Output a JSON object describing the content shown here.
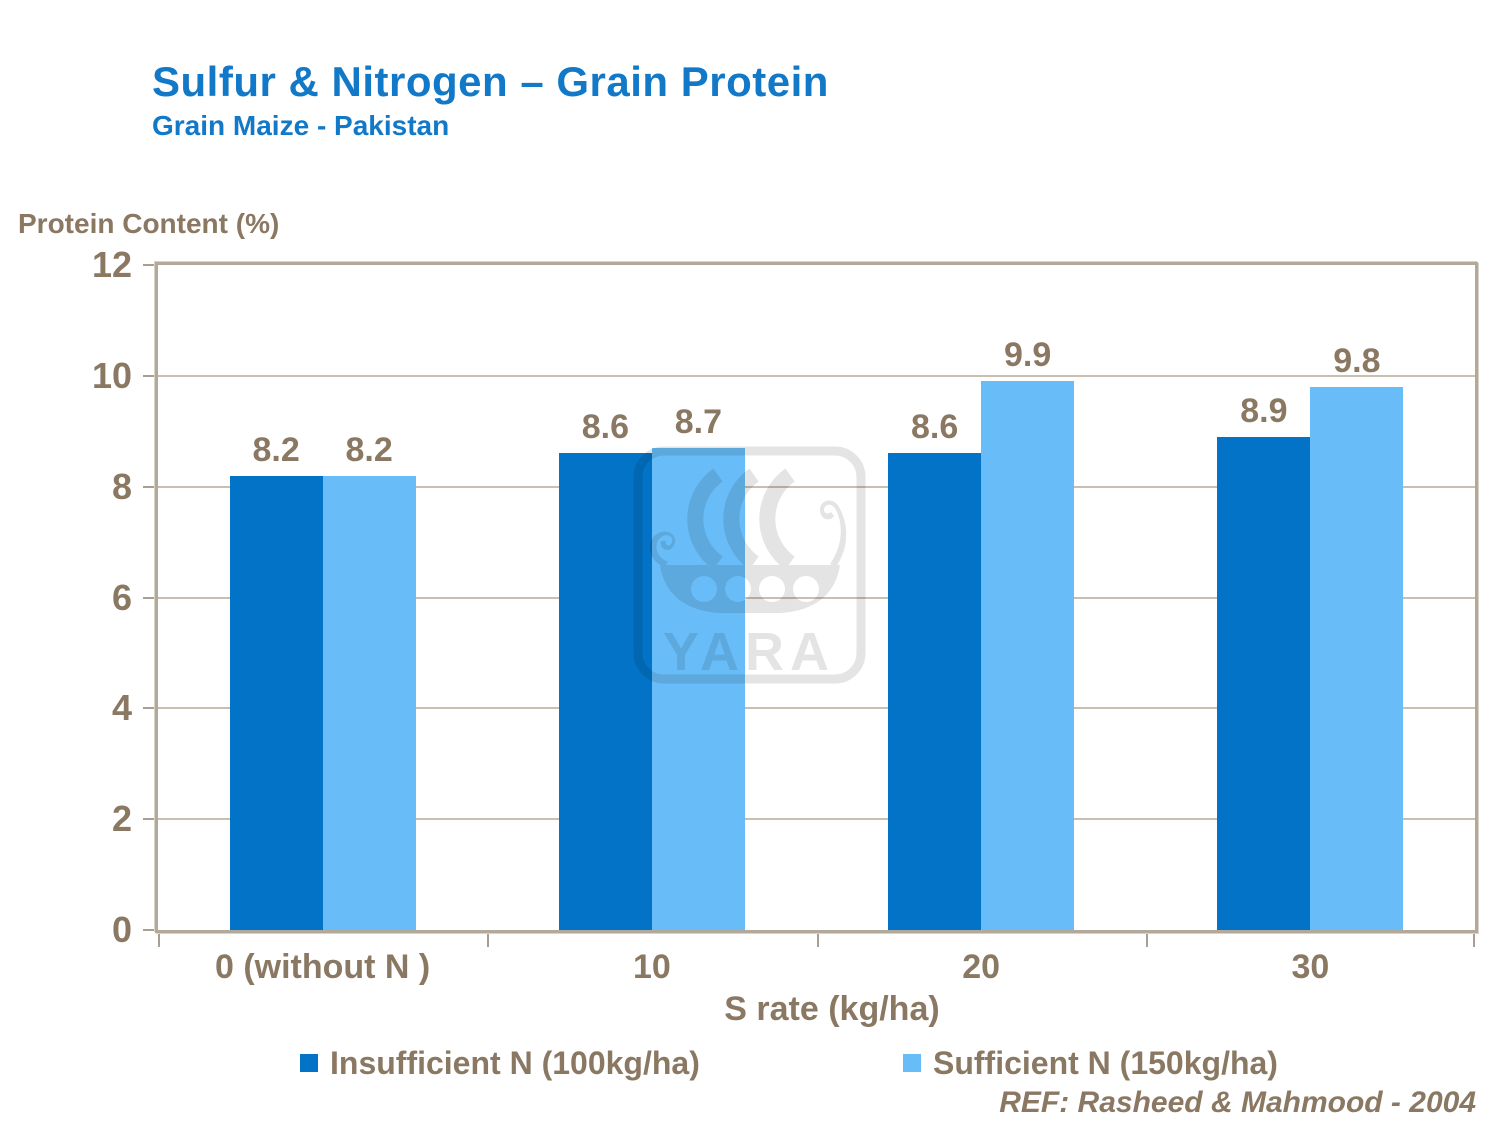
{
  "slide": {
    "title": "Sulfur & Nitrogen – Grain Protein",
    "subtitle": "Grain Maize - Pakistan",
    "reference": "REF: Rasheed & Mahmood - 2004",
    "watermark_text": "YARA"
  },
  "chart_data": {
    "type": "bar",
    "categories": [
      "0 (without N )",
      "10",
      "20",
      "30"
    ],
    "series": [
      {
        "name": "Insufficient N (100kg/ha)",
        "color": "#0273C6",
        "values": [
          8.2,
          8.6,
          8.6,
          8.9
        ]
      },
      {
        "name": "Sufficient N (150kg/ha)",
        "color": "#68BCF8",
        "values": [
          8.2,
          8.7,
          9.9,
          9.8
        ]
      }
    ],
    "xlabel": "S rate (kg/ha)",
    "ylabel": "Protein Content (%)",
    "ylim": [
      0,
      12
    ],
    "yticks": [
      0,
      2,
      4,
      6,
      8,
      10,
      12
    ],
    "grid": true,
    "legend_position": "bottom",
    "data_labels": true
  },
  "colors": {
    "title_blue": "#1278C8",
    "axis_text": "#8A7863",
    "plot_border": "#B3A99B",
    "gridline": "#C9BFB0",
    "watermark_gray": "#E4E4E4"
  }
}
